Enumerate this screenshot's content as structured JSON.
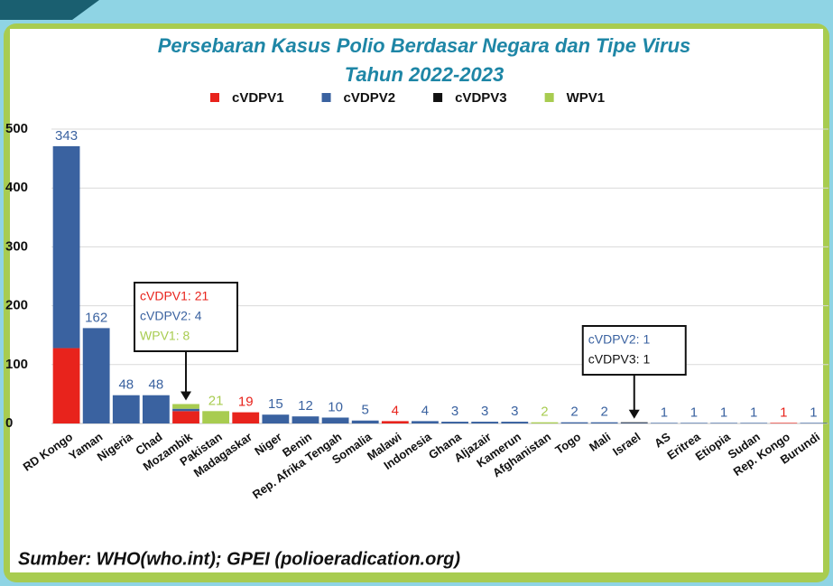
{
  "chart_data": {
    "type": "stacked_bar",
    "title": [
      "Persebaran Kasus Polio Berdasar Negara  dan Tipe Virus",
      "Tahun 2022-2023"
    ],
    "source": "Sumber: WHO(who.int); GPEI (polioeradication.org)",
    "categories": [
      "RD Kongo",
      "Yaman",
      "Nigeria",
      "Chad",
      "Mozambik",
      "Pakistan",
      "Madagaskar",
      "Niger",
      "Benin",
      "Rep. Afrika Tengah",
      "Somalia",
      "Malawi",
      "Indonesia",
      "Ghana",
      "Aljazair",
      "Kamerun",
      "Afghanistan",
      "Togo",
      "Mali",
      "Israel",
      "AS",
      "Eritrea",
      "Etiopia",
      "Sudan",
      "Rep. Kongo",
      "Burundi"
    ],
    "series": [
      {
        "name": "cVDPV1",
        "color": "#e8231c",
        "values": [
          128,
          null,
          null,
          null,
          21,
          null,
          19,
          null,
          null,
          null,
          null,
          4,
          null,
          null,
          null,
          null,
          null,
          null,
          null,
          null,
          null,
          null,
          null,
          null,
          1,
          null
        ]
      },
      {
        "name": "cVDPV2",
        "color": "#3a62a0",
        "values": [
          343,
          162,
          48,
          48,
          4,
          null,
          null,
          15,
          12,
          10,
          5,
          null,
          4,
          3,
          3,
          3,
          null,
          2,
          2,
          1,
          1,
          1,
          1,
          1,
          null,
          1
        ]
      },
      {
        "name": "cVDPV3",
        "color": "#111111",
        "values": [
          null,
          null,
          null,
          null,
          null,
          null,
          null,
          null,
          null,
          null,
          null,
          null,
          null,
          null,
          null,
          null,
          null,
          null,
          null,
          1,
          null,
          null,
          null,
          null,
          null,
          null
        ]
      },
      {
        "name": "WPV1",
        "color": "#a8cc50",
        "values": [
          null,
          null,
          null,
          null,
          8,
          21,
          null,
          null,
          null,
          null,
          null,
          null,
          null,
          null,
          null,
          null,
          2,
          null,
          null,
          null,
          null,
          null,
          null,
          null,
          null,
          null
        ]
      }
    ],
    "annotations": [
      {
        "category": "Mozambik",
        "lines": [
          {
            "text": "cVDPV1: 21",
            "color": "#e8231c"
          },
          {
            "text": "cVDPV2: 4",
            "color": "#3a62a0"
          },
          {
            "text": "WPV1: 8",
            "color": "#a8cc50"
          }
        ]
      },
      {
        "category": "Israel",
        "lines": [
          {
            "text": "cVDPV2: 1",
            "color": "#3a62a0"
          },
          {
            "text": "cVDPV3: 1",
            "color": "#111111"
          }
        ]
      }
    ],
    "ylim": [
      0,
      500
    ],
    "yticks": [
      0,
      100,
      200,
      300,
      400,
      500
    ],
    "grid": true
  }
}
